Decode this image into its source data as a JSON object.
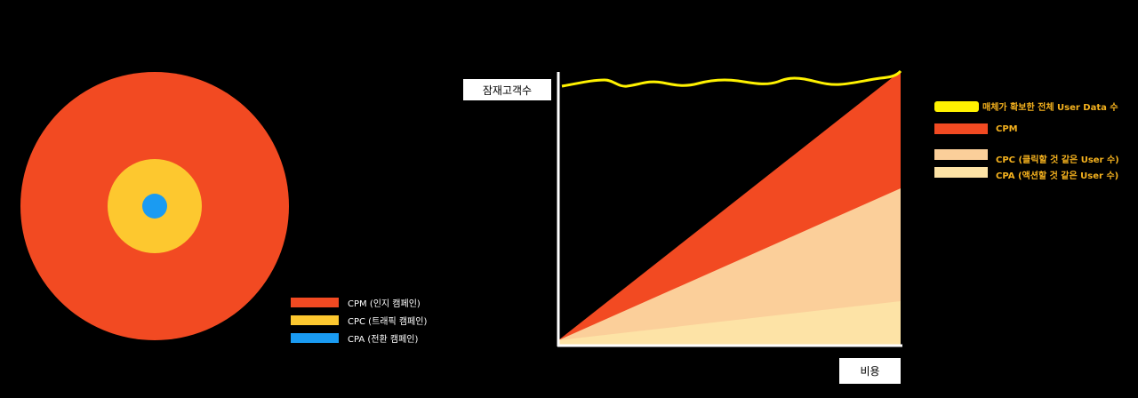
{
  "colors": {
    "cpm": "#f24a22",
    "cpc_ring": "#fdc82f",
    "cpa_dot": "#1a9bf2",
    "cpc_area": "#fbcf9a",
    "cpa_area": "#fde3a6",
    "total_line": "#fff200",
    "right_legend_text": "#f5b21e"
  },
  "funnel_legend": [
    {
      "label": "CPM (인지 캠페인)",
      "color_key": "cpm"
    },
    {
      "label": "CPC (트래픽 캠페인)",
      "color_key": "cpc_ring"
    },
    {
      "label": "CPA (전환 캠페인)",
      "color_key": "cpa_dot"
    }
  ],
  "chart": {
    "y_label": "잠재고객수",
    "x_label": "비용",
    "legend": [
      {
        "label": "매체가 확보한 전체 User Data  수",
        "color_key": "total_line"
      },
      {
        "label": "CPM",
        "color_key": "cpm"
      },
      {
        "label": "CPC (클릭할 것 같은 User 수)",
        "color_key": "cpc_area"
      },
      {
        "label": "CPA (액션할 것 같은 User 수)",
        "color_key": "cpa_area"
      }
    ]
  }
}
